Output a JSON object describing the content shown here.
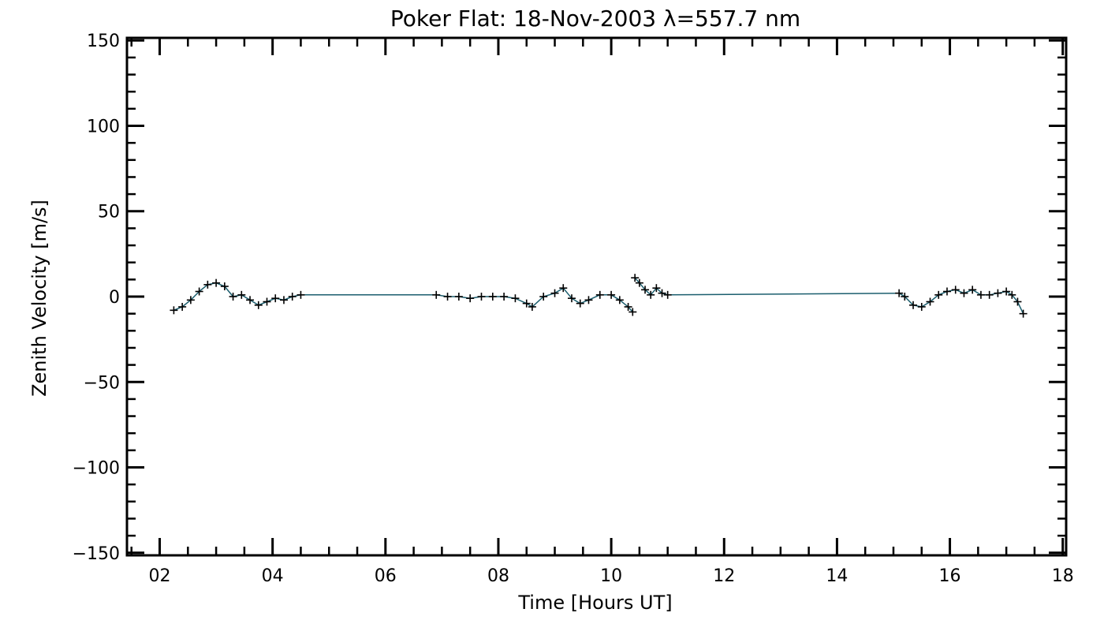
{
  "chart_data": {
    "type": "scatter",
    "title": "Poker Flat: 18-Nov-2003 λ=557.7 nm",
    "xlabel": "Time [Hours UT]",
    "ylabel": "Zenith Velocity [m/s]",
    "xlim": [
      1.42,
      18.06
    ],
    "ylim": [
      -151.5,
      151.5
    ],
    "x_ticks": [
      2,
      4,
      6,
      8,
      10,
      12,
      14,
      16,
      18
    ],
    "x_tick_labels": [
      "02",
      "04",
      "06",
      "08",
      "10",
      "12",
      "14",
      "16",
      "18"
    ],
    "y_ticks": [
      -150,
      -100,
      -50,
      0,
      50,
      100,
      150
    ],
    "y_tick_labels": [
      "−150",
      "−100",
      "−50",
      "0",
      "50",
      "100",
      "150"
    ],
    "grid": false,
    "legend": "none",
    "marker": "plus",
    "line_color": "#1b5e6e",
    "segments": [
      {
        "x": [
          2.25,
          2.4,
          2.55,
          2.7,
          2.85,
          3.0,
          3.15,
          3.3,
          3.45,
          3.6,
          3.75,
          3.9,
          4.05,
          4.2,
          4.35,
          4.5
        ],
        "y": [
          -8,
          -6,
          -2,
          3,
          7,
          8,
          6,
          0,
          1,
          -2,
          -5,
          -3,
          -1,
          -2,
          0,
          1
        ]
      },
      {
        "x": [
          6.9,
          7.1,
          7.3,
          7.5,
          7.7,
          7.9,
          8.1,
          8.3,
          8.5,
          8.6,
          8.8,
          9.0,
          9.15,
          9.3,
          9.45,
          9.6,
          9.8,
          10.0,
          10.15,
          10.3,
          10.38
        ],
        "y": [
          1,
          0,
          0,
          -1,
          0,
          0,
          0,
          -1,
          -4,
          -6,
          0,
          2,
          5,
          -1,
          -4,
          -2,
          1,
          1,
          -2,
          -6,
          -9
        ]
      },
      {
        "x": [
          10.42,
          10.5,
          10.6,
          10.7,
          10.8,
          10.9,
          11.0
        ],
        "y": [
          11,
          8,
          4,
          1,
          5,
          2,
          1
        ]
      },
      {
        "x": [
          15.1,
          15.2,
          15.35,
          15.5,
          15.65,
          15.8,
          15.95,
          16.1,
          16.25,
          16.4,
          16.55,
          16.7,
          16.85,
          17.0,
          17.1,
          17.2,
          17.3
        ],
        "y": [
          2,
          0,
          -5,
          -6,
          -3,
          1,
          3,
          4,
          2,
          4,
          1,
          1,
          2,
          3,
          1,
          -3,
          -10
        ]
      }
    ],
    "gap_links": [
      {
        "x": [
          4.5,
          6.9
        ],
        "y": [
          1,
          1
        ]
      },
      {
        "x": [
          11.0,
          15.1
        ],
        "y": [
          1,
          2
        ]
      }
    ]
  }
}
